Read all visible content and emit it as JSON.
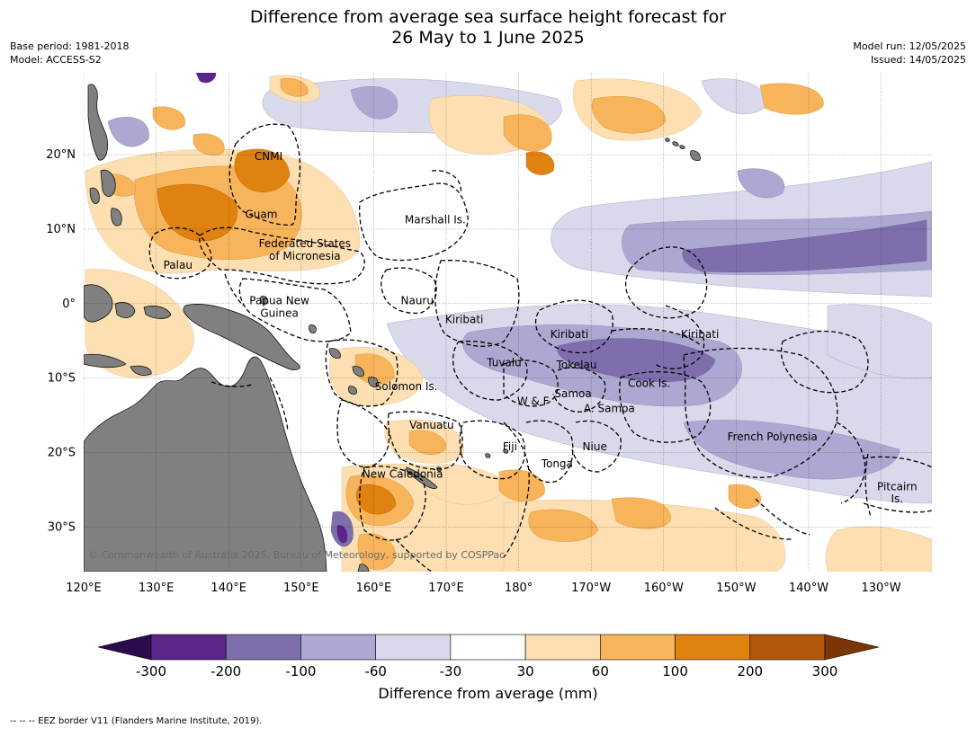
{
  "title_line1": "Difference from average sea surface height forecast for",
  "title_line2": "26 May to 1 June 2025",
  "meta_left": [
    "Base period: 1981-2018",
    "Model: ACCESS-S2"
  ],
  "meta_right": [
    "Model run: 12/05/2025",
    "Issued: 14/05/2025"
  ],
  "map": {
    "lon_range": [
      120,
      237
    ],
    "lat_range": [
      -36,
      31
    ],
    "lon_ticks": [
      {
        "lon": 120,
        "label": "120°E"
      },
      {
        "lon": 130,
        "label": "130°E"
      },
      {
        "lon": 140,
        "label": "140°E"
      },
      {
        "lon": 150,
        "label": "150°E"
      },
      {
        "lon": 160,
        "label": "160°E"
      },
      {
        "lon": 170,
        "label": "170°E"
      },
      {
        "lon": 180,
        "label": "180°"
      },
      {
        "lon": 190,
        "label": "170°W"
      },
      {
        "lon": 200,
        "label": "160°W"
      },
      {
        "lon": 210,
        "label": "150°W"
      },
      {
        "lon": 220,
        "label": "140°W"
      },
      {
        "lon": 230,
        "label": "130°W"
      }
    ],
    "lat_ticks": [
      {
        "lat": 20,
        "label": "20°N"
      },
      {
        "lat": 10,
        "label": "10°N"
      },
      {
        "lat": 0,
        "label": "0°"
      },
      {
        "lat": -10,
        "label": "10°S"
      },
      {
        "lat": -20,
        "label": "20°S"
      },
      {
        "lat": -30,
        "label": "30°S"
      }
    ],
    "region_labels": [
      {
        "text": "CNMI",
        "lon": 145.5,
        "lat": 19.3
      },
      {
        "text": "Guam",
        "lon": 144.5,
        "lat": 11.5
      },
      {
        "text": "Marshall Is.",
        "lon": 168.5,
        "lat": 10.8
      },
      {
        "text": "Federated States",
        "lon": 150.5,
        "lat": 7.6
      },
      {
        "text": "of Micronesia",
        "lon": 150.5,
        "lat": 5.9
      },
      {
        "text": "Palau",
        "lon": 133,
        "lat": 4.7
      },
      {
        "text": "Papua New",
        "lon": 147,
        "lat": -0.1
      },
      {
        "text": "Guinea",
        "lon": 147,
        "lat": -1.8
      },
      {
        "text": "Nauru",
        "lon": 166,
        "lat": -0.1
      },
      {
        "text": "Kiribati",
        "lon": 172.5,
        "lat": -2.6
      },
      {
        "text": "Kiribati",
        "lon": 187,
        "lat": -4.6
      },
      {
        "text": "Kiribati",
        "lon": 205,
        "lat": -4.6
      },
      {
        "text": "Tuvalu",
        "lon": 178,
        "lat": -8.4
      },
      {
        "text": "Tokelau",
        "lon": 188,
        "lat": -8.7
      },
      {
        "text": "Cook Is.",
        "lon": 198,
        "lat": -11.2
      },
      {
        "text": "Solomon Is.",
        "lon": 164.5,
        "lat": -11.6
      },
      {
        "text": "Samoa",
        "lon": 187.5,
        "lat": -12.6
      },
      {
        "text": "W & F",
        "lon": 182,
        "lat": -13.6
      },
      {
        "text": "A. Samoa",
        "lon": 192.5,
        "lat": -14.6
      },
      {
        "text": "Vanuatu",
        "lon": 168,
        "lat": -16.8
      },
      {
        "text": "Fiji",
        "lon": 178.8,
        "lat": -19.7
      },
      {
        "text": "Niue",
        "lon": 190.5,
        "lat": -19.7
      },
      {
        "text": "French Polynesia",
        "lon": 215,
        "lat": -18.4
      },
      {
        "text": "Tonga",
        "lon": 185.3,
        "lat": -22
      },
      {
        "text": "New Caledonia",
        "lon": 164,
        "lat": -23.4
      },
      {
        "text": "Pitcairn",
        "lon": 232.2,
        "lat": -25.1
      },
      {
        "text": "Is.",
        "lon": 232.2,
        "lat": -26.7
      }
    ],
    "copyright": "© Commonwealth of Australia 2025, Bureau of Meteorology, supported by COSPPac"
  },
  "colorbar": {
    "title": "Difference from average (mm)",
    "ticks": [
      "-300",
      "-200",
      "-100",
      "-60",
      "-30",
      "30",
      "60",
      "100",
      "200",
      "300"
    ],
    "colors": {
      "below": "#2d0a4e",
      "bins": [
        "#5b2589",
        "#7e6fac",
        "#ada8d1",
        "#d9d9ec",
        "#ffffff",
        "#fddfb2",
        "#f8b45b",
        "#e0820f",
        "#b1560b"
      ],
      "above": "#7a3606"
    }
  },
  "land_color": "#808080",
  "footnote": "--  --  -- EEZ border V11 (Flanders Marine Institute, 2019)."
}
